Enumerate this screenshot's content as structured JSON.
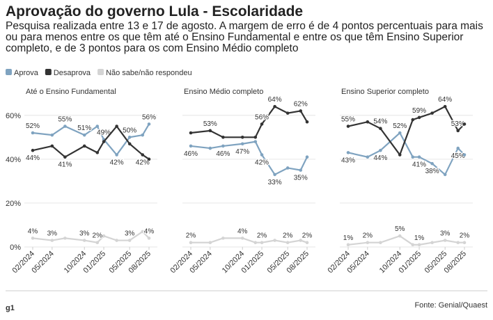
{
  "title": "Aprovação do governo Lula - Escolaridade",
  "subtitle": "Pesquisa realizada entre 13 e 17 de agosto. A margem de erro é de 4 pontos percentuais para mais ou para menos entre os que têm até o Ensino Fundamental e entre os que têm Ensino Superior completo, e de 3 pontos para os com Ensino Médio completo",
  "legend": [
    {
      "name": "Aprova",
      "color": "#7fa3c0"
    },
    {
      "name": "Desaprova",
      "color": "#333333"
    },
    {
      "name": "Não sabe/não respondeu",
      "color": "#d4d4d4"
    }
  ],
  "logo": "g1",
  "source": "Fonte: Genial/Quaest",
  "chart_data": [
    {
      "type": "line",
      "title": "Até o Ensino Fundamental",
      "x": [
        "2024-02",
        "2024-05",
        "2024-07",
        "2024-10",
        "2024-12",
        "2025-01",
        "2025-03",
        "2025-05",
        "2025-07",
        "2025-08"
      ],
      "xlim": [
        "2024-02",
        "2025-08"
      ],
      "xticks": [
        {
          "value": "2024-02",
          "label": "02/2024"
        },
        {
          "value": "2024-05",
          "label": "05/2024"
        },
        {
          "value": "2024-10",
          "label": "10/2024"
        },
        {
          "value": "2025-01",
          "label": "01/2025"
        },
        {
          "value": "2025-05",
          "label": "05/2025"
        },
        {
          "value": "2025-08",
          "label": "08/2025"
        }
      ],
      "ylim": [
        0,
        65
      ],
      "yticks": [
        {
          "value": 0,
          "label": "0%"
        },
        {
          "value": 20,
          "label": "20%"
        },
        {
          "value": 40,
          "label": "40%"
        },
        {
          "value": 60,
          "label": "60%"
        }
      ],
      "series": [
        {
          "values": [
            52,
            51,
            55,
            51,
            55,
            49,
            42,
            50,
            51,
            56
          ],
          "value_labels": [
            "52%",
            null,
            "55%",
            "51%",
            null,
            "49%",
            "42%",
            "50%",
            null,
            "56%"
          ]
        },
        {
          "values": [
            44,
            46,
            41,
            46,
            43,
            48,
            55,
            47,
            42,
            40
          ],
          "value_labels": [
            "44%",
            null,
            "41%",
            null,
            null,
            null,
            null,
            null,
            "42%",
            null
          ]
        },
        {
          "values": [
            4,
            3,
            4,
            3,
            2,
            5,
            3,
            3,
            7,
            4
          ],
          "value_labels": [
            "4%",
            "3%",
            null,
            "3%",
            "2%",
            null,
            null,
            "3%",
            null,
            "4%"
          ]
        }
      ]
    },
    {
      "type": "line",
      "title": "Ensino Médio completo",
      "x": [
        "2024-02",
        "2024-05",
        "2024-07",
        "2024-10",
        "2024-12",
        "2025-01",
        "2025-03",
        "2025-05",
        "2025-07",
        "2025-08"
      ],
      "xlim": [
        "2024-02",
        "2025-08"
      ],
      "xticks": [
        {
          "value": "2024-02",
          "label": "02/2024"
        },
        {
          "value": "2024-05",
          "label": "05/2024"
        },
        {
          "value": "2024-10",
          "label": "10/2024"
        },
        {
          "value": "2025-01",
          "label": "01/2025"
        },
        {
          "value": "2025-05",
          "label": "05/2025"
        },
        {
          "value": "2025-08",
          "label": "08/2025"
        }
      ],
      "ylim": [
        0,
        65
      ],
      "yticks": [
        {
          "value": 0,
          "label": "0%"
        },
        {
          "value": 20,
          "label": "20%"
        },
        {
          "value": 40,
          "label": "40%"
        },
        {
          "value": 60,
          "label": "60%"
        }
      ],
      "series": [
        {
          "values": [
            46,
            45,
            46,
            47,
            48,
            42,
            33,
            36,
            35,
            41
          ],
          "value_labels": [
            "46%",
            null,
            "46%",
            "47%",
            null,
            "42%",
            "33%",
            null,
            "35%",
            null
          ]
        },
        {
          "values": [
            52,
            53,
            50,
            50,
            50,
            56,
            64,
            61,
            62,
            57
          ],
          "value_labels": [
            null,
            "53%",
            null,
            null,
            null,
            "56%",
            "64%",
            null,
            "62%",
            null
          ]
        },
        {
          "values": [
            2,
            2,
            4,
            4,
            2,
            2,
            3,
            2,
            3,
            2
          ],
          "value_labels": [
            "2%",
            null,
            null,
            "4%",
            null,
            "2%",
            null,
            "2%",
            null,
            "2%"
          ]
        }
      ]
    },
    {
      "type": "line",
      "title": "Ensino Superior completo",
      "x": [
        "2024-02",
        "2024-05",
        "2024-07",
        "2024-10",
        "2024-12",
        "2025-01",
        "2025-03",
        "2025-05",
        "2025-07",
        "2025-08"
      ],
      "xlim": [
        "2024-02",
        "2025-08"
      ],
      "xticks": [
        {
          "value": "2024-02",
          "label": "02/2024"
        },
        {
          "value": "2024-05",
          "label": "05/2024"
        },
        {
          "value": "2024-10",
          "label": "10/2024"
        },
        {
          "value": "2025-01",
          "label": "01/2025"
        },
        {
          "value": "2025-05",
          "label": "05/2025"
        },
        {
          "value": "2025-08",
          "label": "08/2025"
        }
      ],
      "ylim": [
        0,
        65
      ],
      "yticks": [
        {
          "value": 0,
          "label": "0%"
        },
        {
          "value": 20,
          "label": "20%"
        },
        {
          "value": 40,
          "label": "40%"
        },
        {
          "value": 60,
          "label": "60%"
        }
      ],
      "series": [
        {
          "values": [
            43,
            41,
            44,
            52,
            41,
            41,
            38,
            33,
            45,
            42
          ],
          "value_labels": [
            "43%",
            null,
            "44%",
            "52%",
            null,
            "41%",
            "38%",
            null,
            "45%",
            null
          ]
        },
        {
          "values": [
            55,
            57,
            54,
            42,
            58,
            59,
            61,
            64,
            53,
            56
          ],
          "value_labels": [
            "55%",
            null,
            "54%",
            null,
            null,
            "59%",
            null,
            "64%",
            "53%",
            null
          ]
        },
        {
          "values": [
            1,
            2,
            2,
            5,
            1,
            1,
            2,
            3,
            2,
            2
          ],
          "value_labels": [
            "1%",
            "2%",
            null,
            "5%",
            null,
            "1%",
            null,
            "3%",
            null,
            "2%"
          ]
        }
      ]
    }
  ]
}
